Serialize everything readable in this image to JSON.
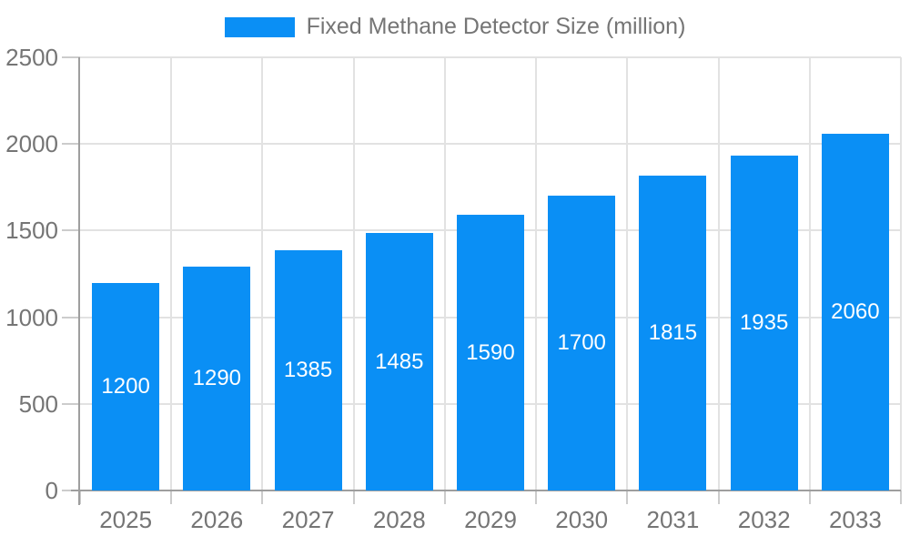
{
  "page": {
    "background_color": "#ffffff"
  },
  "legend": {
    "label": "Fixed Methane Detector Size (million)",
    "swatch_color": "#0a8ff5",
    "position": "top-center"
  },
  "chart_data": {
    "type": "bar",
    "title": "",
    "categories": [
      "2025",
      "2026",
      "2027",
      "2028",
      "2029",
      "2030",
      "2031",
      "2032",
      "2033"
    ],
    "series": [
      {
        "name": "Fixed Methane Detector Size (million)",
        "values": [
          1200,
          1290,
          1385,
          1485,
          1590,
          1700,
          1815,
          1935,
          2060
        ]
      }
    ],
    "value_labels": [
      "1200",
      "1290",
      "1385",
      "1485",
      "1590",
      "1700",
      "1815",
      "1935",
      "2060"
    ],
    "xlabel": "",
    "ylabel": "",
    "ylim": [
      0,
      2500
    ],
    "yticks": [
      0,
      500,
      1000,
      1500,
      2000,
      2500
    ],
    "ytick_labels": [
      "0",
      "500",
      "1000",
      "1500",
      "2000",
      "2500"
    ],
    "grid": true,
    "legend_position": "top",
    "colors": {
      "bar": "#0a8ff5",
      "value_label": "#ffffff",
      "axis_text": "#757575",
      "axis_line": "#9e9e9e",
      "tick_line": "#cccccc",
      "gridline": "#e2e2e2"
    }
  }
}
